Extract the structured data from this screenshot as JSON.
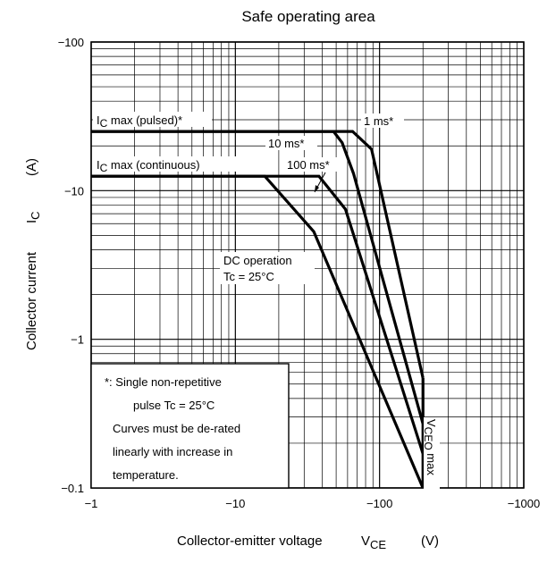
{
  "chart_data": {
    "type": "line",
    "title": "Safe operating area",
    "xlabel": {
      "main": "Collector-emitter voltage",
      "sym": "V",
      "sub": "CE",
      "unit": "(V)"
    },
    "ylabel": {
      "main": "Collector current",
      "sym": "I",
      "sub": "C",
      "unit": "(A)"
    },
    "x_scale": "log",
    "y_scale": "log",
    "xlim": [
      1,
      1000
    ],
    "ylim": [
      0.1,
      100
    ],
    "x_ticks": [
      {
        "value": 1,
        "label": "−1"
      },
      {
        "value": 10,
        "label": "−10"
      },
      {
        "value": 100,
        "label": "−100"
      },
      {
        "value": 1000,
        "label": "−1000"
      }
    ],
    "y_ticks": [
      {
        "value": 0.1,
        "label": "−0.1"
      },
      {
        "value": 1,
        "label": "−1"
      },
      {
        "value": 10,
        "label": "−10"
      },
      {
        "value": 100,
        "label": "−100"
      }
    ],
    "grid": true,
    "series": [
      {
        "name": "1 ms*",
        "points": [
          [
            1,
            25
          ],
          [
            65,
            25
          ],
          [
            88,
            19
          ],
          [
            200,
            0.55
          ]
        ]
      },
      {
        "name": "10 ms*",
        "points": [
          [
            1,
            25
          ],
          [
            48,
            25
          ],
          [
            55,
            21
          ],
          [
            66,
            13
          ],
          [
            200,
            0.27
          ]
        ]
      },
      {
        "name": "100 ms*",
        "points": [
          [
            1,
            12.5
          ],
          [
            38,
            12.5
          ],
          [
            58,
            7.5
          ],
          [
            200,
            0.17
          ]
        ]
      },
      {
        "name": "DC operation",
        "points": [
          [
            1,
            12.5
          ],
          [
            16,
            12.5
          ],
          [
            35,
            5.3
          ],
          [
            200,
            0.1
          ]
        ]
      }
    ],
    "vceo_line": {
      "x": 200,
      "y_range": [
        0.1,
        0.55
      ]
    },
    "annotations": {
      "ic_pulsed": {
        "main": "I",
        "sub": "C",
        "rest": " max (pulsed)*"
      },
      "ic_cont": {
        "main": "I",
        "sub": "C",
        "rest": " max (continuous)"
      },
      "label_1ms": "1 ms*",
      "label_10ms": "10 ms*",
      "label_100ms": "100 ms*",
      "dc_line1": "DC operation",
      "dc_line2": "Tc = 25°C",
      "vceo": {
        "main": "V",
        "sub": "CEO",
        "rest": " max"
      }
    },
    "note": [
      "*:  Single non-repetitive",
      "pulse    Tc = 25°C",
      "Curves must be de-rated",
      "linearly with increase in",
      "temperature."
    ]
  }
}
